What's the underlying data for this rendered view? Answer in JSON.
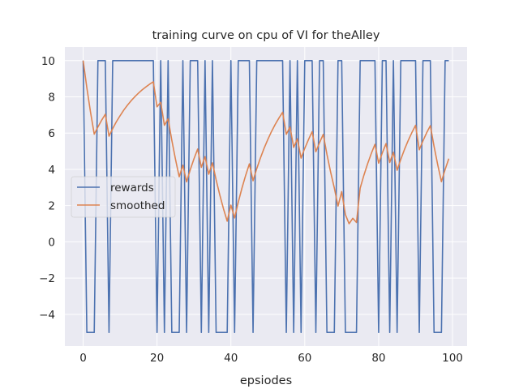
{
  "chart_data": {
    "type": "line",
    "title": "training curve on cpu of VI for theAlley",
    "xlabel": "epsiodes",
    "ylabel": "",
    "xlim": [
      -4.95,
      103.95
    ],
    "ylim": [
      -5.75,
      10.75
    ],
    "xticks": [
      0,
      20,
      40,
      60,
      80,
      100
    ],
    "xtick_labels": [
      "0",
      "20",
      "40",
      "60",
      "80",
      "100"
    ],
    "yticks": [
      -4,
      -2,
      0,
      2,
      4,
      6,
      8,
      10
    ],
    "ytick_labels": [
      "−4",
      "−2",
      "0",
      "2",
      "4",
      "6",
      "8",
      "10"
    ],
    "grid": true,
    "legend_position": "center-left",
    "colors": {
      "background": "#eaeaf2",
      "grid": "#ffffff",
      "rewards": "#4c72b0",
      "smoothed": "#dd8452"
    },
    "series": [
      {
        "name": "rewards",
        "x": [
          0,
          1,
          2,
          3,
          4,
          5,
          6,
          7,
          8,
          9,
          10,
          11,
          12,
          13,
          14,
          15,
          16,
          17,
          18,
          19,
          20,
          21,
          22,
          23,
          24,
          25,
          26,
          27,
          28,
          29,
          30,
          31,
          32,
          33,
          34,
          35,
          36,
          37,
          38,
          39,
          40,
          41,
          42,
          43,
          44,
          45,
          46,
          47,
          48,
          49,
          50,
          51,
          52,
          53,
          54,
          55,
          56,
          57,
          58,
          59,
          60,
          61,
          62,
          63,
          64,
          65,
          66,
          67,
          68,
          69,
          70,
          71,
          72,
          73,
          74,
          75,
          76,
          77,
          78,
          79,
          80,
          81,
          82,
          83,
          84,
          85,
          86,
          87,
          88,
          89,
          90,
          91,
          92,
          93,
          94,
          95,
          96,
          97,
          98,
          99
        ],
        "y": [
          10,
          -5,
          -5,
          -5,
          10,
          10,
          10,
          -5,
          10,
          10,
          10,
          10,
          10,
          10,
          10,
          10,
          10,
          10,
          10,
          10,
          -5,
          10,
          -5,
          10,
          -5,
          -5,
          -5,
          10,
          -5,
          10,
          10,
          10,
          -5,
          10,
          -5,
          10,
          -5,
          -5,
          -5,
          -5,
          10,
          -5,
          10,
          10,
          10,
          10,
          -5,
          10,
          10,
          10,
          10,
          10,
          10,
          10,
          10,
          -5,
          10,
          -5,
          10,
          -5,
          10,
          10,
          10,
          -5,
          10,
          10,
          -5,
          -5,
          -5,
          10,
          10,
          -5,
          -5,
          -5,
          -5,
          10,
          10,
          10,
          10,
          10,
          -5,
          10,
          10,
          -5,
          10,
          -5,
          10,
          10,
          10,
          10,
          10,
          -5,
          10,
          10,
          10,
          -5,
          -5,
          -5,
          10,
          10
        ]
      },
      {
        "name": "smoothed",
        "x": [
          0,
          1,
          2,
          3,
          4,
          5,
          6,
          7,
          8,
          9,
          10,
          11,
          12,
          13,
          14,
          15,
          16,
          17,
          18,
          19,
          20,
          21,
          22,
          23,
          24,
          25,
          26,
          27,
          28,
          29,
          30,
          31,
          32,
          33,
          34,
          35,
          36,
          37,
          38,
          39,
          40,
          41,
          42,
          43,
          44,
          45,
          46,
          47,
          48,
          49,
          50,
          51,
          52,
          53,
          54,
          55,
          56,
          57,
          58,
          59,
          60,
          61,
          62,
          63,
          64,
          65,
          66,
          67,
          68,
          69,
          70,
          71,
          72,
          73,
          74,
          75,
          76,
          77,
          78,
          79,
          80,
          81,
          82,
          83,
          84,
          85,
          86,
          87,
          88,
          89,
          90,
          91,
          92,
          93,
          94,
          95,
          96,
          97,
          98,
          99
        ],
        "y": [
          10,
          8.5,
          7.15,
          5.94,
          6.34,
          6.71,
          7.04,
          5.83,
          6.25,
          6.63,
          6.96,
          7.27,
          7.54,
          7.79,
          8.01,
          8.21,
          8.39,
          8.55,
          8.7,
          8.83,
          7.45,
          7.7,
          6.43,
          6.79,
          5.61,
          4.55,
          3.59,
          4.23,
          3.31,
          3.98,
          4.58,
          5.12,
          4.11,
          4.7,
          3.73,
          4.36,
          3.42,
          2.58,
          1.82,
          1.14,
          2.03,
          1.32,
          2.19,
          2.97,
          3.67,
          4.3,
          3.37,
          4.04,
          4.63,
          5.17,
          5.65,
          6.09,
          6.48,
          6.83,
          7.15,
          5.93,
          6.34,
          5.21,
          5.69,
          4.62,
          5.16,
          5.64,
          6.08,
          4.97,
          5.47,
          5.93,
          4.83,
          3.85,
          2.97,
          1.97,
          2.77,
          1.5,
          1.0,
          1.3,
          1.07,
          2.96,
          3.67,
          4.3,
          4.87,
          5.38,
          4.34,
          4.91,
          5.42,
          4.38,
          4.94,
          3.95,
          4.55,
          5.1,
          5.59,
          6.03,
          6.43,
          5.08,
          5.57,
          6.02,
          6.41,
          5.27,
          4.25,
          3.32,
          3.99,
          4.59
        ]
      }
    ]
  }
}
